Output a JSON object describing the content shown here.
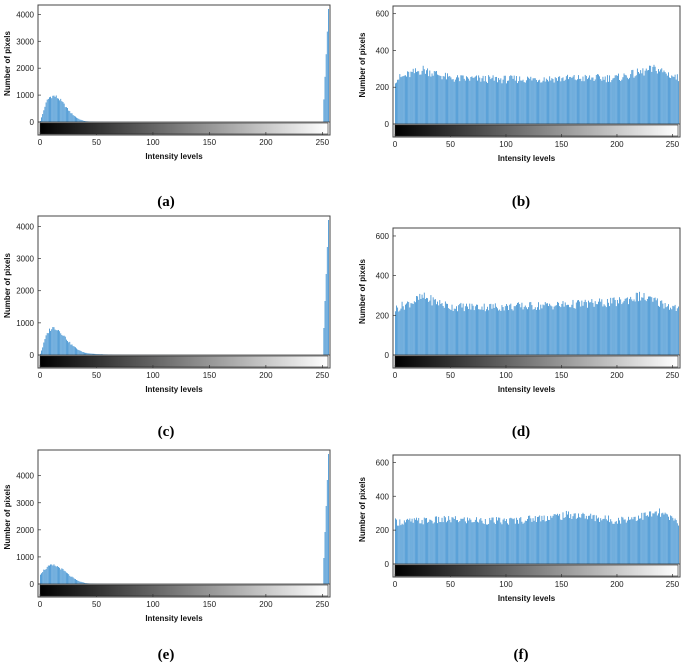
{
  "chart_data": [
    {
      "panel": "(a)",
      "type": "bar",
      "ylabel": "Number of pixels",
      "xlabel": "Intensity levels",
      "xlim": [
        0,
        255
      ],
      "ylim": [
        0,
        4200
      ],
      "xticks": [
        0,
        50,
        100,
        150,
        200,
        250
      ],
      "yticks": [
        0,
        1000,
        2000,
        3000,
        4000
      ],
      "has_intensity_colorbar": true,
      "grid": false,
      "color": "#3b8fd0",
      "series": [
        {
          "x": [
            0,
            2,
            4,
            6,
            8,
            10,
            12,
            14,
            16,
            18,
            20,
            22,
            24,
            26,
            28,
            30,
            32,
            34,
            36,
            38,
            40,
            45,
            50,
            60,
            80,
            100,
            150,
            200,
            250,
            255
          ],
          "values": [
            40,
            300,
            600,
            820,
            940,
            980,
            990,
            960,
            900,
            820,
            720,
            610,
            500,
            400,
            310,
            240,
            170,
            120,
            80,
            50,
            30,
            15,
            8,
            4,
            2,
            1,
            0,
            0,
            0,
            4200
          ]
        }
      ]
    },
    {
      "panel": "(b)",
      "type": "bar",
      "ylabel": "Number of pixels",
      "xlabel": "Intensity levels",
      "xlim": [
        0,
        255
      ],
      "ylim": [
        0,
        620
      ],
      "xticks": [
        0,
        50,
        100,
        150,
        200,
        250
      ],
      "yticks": [
        0,
        200,
        400,
        600
      ],
      "has_intensity_colorbar": true,
      "grid": false,
      "color": "#3b8fd0",
      "series": [
        {
          "x": [
            0,
            25,
            50,
            100,
            150,
            200,
            235,
            255
          ],
          "values": [
            250,
            305,
            255,
            250,
            255,
            258,
            310,
            255
          ]
        }
      ]
    },
    {
      "panel": "(c)",
      "type": "bar",
      "ylabel": "Number of pixels",
      "xlabel": "Intensity levels",
      "xlim": [
        0,
        255
      ],
      "ylim": [
        0,
        4200
      ],
      "xticks": [
        0,
        50,
        100,
        150,
        200,
        250
      ],
      "yticks": [
        0,
        1000,
        2000,
        3000,
        4000
      ],
      "has_intensity_colorbar": true,
      "grid": false,
      "color": "#3b8fd0",
      "series": [
        {
          "x": [
            0,
            2,
            4,
            6,
            8,
            10,
            12,
            14,
            16,
            18,
            20,
            22,
            24,
            26,
            28,
            30,
            32,
            34,
            36,
            38,
            40,
            45,
            50,
            60,
            70,
            80,
            100,
            150,
            200,
            250,
            255
          ],
          "values": [
            40,
            250,
            500,
            680,
            800,
            850,
            870,
            850,
            800,
            730,
            650,
            560,
            470,
            390,
            320,
            260,
            210,
            160,
            120,
            90,
            70,
            45,
            30,
            15,
            8,
            4,
            2,
            1,
            0,
            0,
            4200
          ]
        }
      ]
    },
    {
      "panel": "(d)",
      "type": "bar",
      "ylabel": "Number of pixels",
      "xlabel": "Intensity levels",
      "xlim": [
        0,
        255
      ],
      "ylim": [
        0,
        620
      ],
      "xticks": [
        0,
        50,
        100,
        150,
        200,
        250
      ],
      "yticks": [
        0,
        200,
        400,
        600
      ],
      "has_intensity_colorbar": true,
      "grid": false,
      "color": "#3b8fd0",
      "series": [
        {
          "x": [
            0,
            25,
            50,
            100,
            150,
            200,
            220,
            255
          ],
          "values": [
            240,
            300,
            250,
            250,
            260,
            275,
            305,
            240
          ]
        }
      ]
    },
    {
      "panel": "(e)",
      "type": "bar",
      "ylabel": "Number of pixels",
      "xlabel": "Intensity levels",
      "xlim": [
        0,
        255
      ],
      "ylim": [
        0,
        4800
      ],
      "xticks": [
        0,
        50,
        100,
        150,
        200,
        250
      ],
      "yticks": [
        0,
        1000,
        2000,
        3000,
        4000
      ],
      "has_intensity_colorbar": true,
      "grid": false,
      "color": "#3b8fd0",
      "series": [
        {
          "x": [
            0,
            2,
            4,
            6,
            8,
            10,
            12,
            14,
            16,
            18,
            20,
            22,
            24,
            26,
            28,
            30,
            32,
            34,
            36,
            38,
            40,
            45,
            50,
            60,
            80,
            100,
            150,
            200,
            250,
            255
          ],
          "values": [
            380,
            480,
            560,
            630,
            680,
            700,
            700,
            680,
            640,
            590,
            530,
            460,
            390,
            320,
            260,
            200,
            150,
            110,
            80,
            55,
            35,
            15,
            8,
            3,
            1,
            0,
            0,
            0,
            0,
            4800
          ]
        }
      ]
    },
    {
      "panel": "(f)",
      "type": "bar",
      "ylabel": "Number of pixels",
      "xlabel": "Intensity levels",
      "xlim": [
        0,
        255
      ],
      "ylim": [
        0,
        620
      ],
      "xticks": [
        0,
        50,
        100,
        150,
        200,
        250
      ],
      "yticks": [
        0,
        200,
        400,
        600
      ],
      "has_intensity_colorbar": true,
      "grid": false,
      "color": "#3b8fd0",
      "series": [
        {
          "x": [
            0,
            50,
            100,
            160,
            200,
            238,
            255
          ],
          "values": [
            255,
            270,
            260,
            300,
            265,
            310,
            255
          ]
        }
      ]
    }
  ]
}
